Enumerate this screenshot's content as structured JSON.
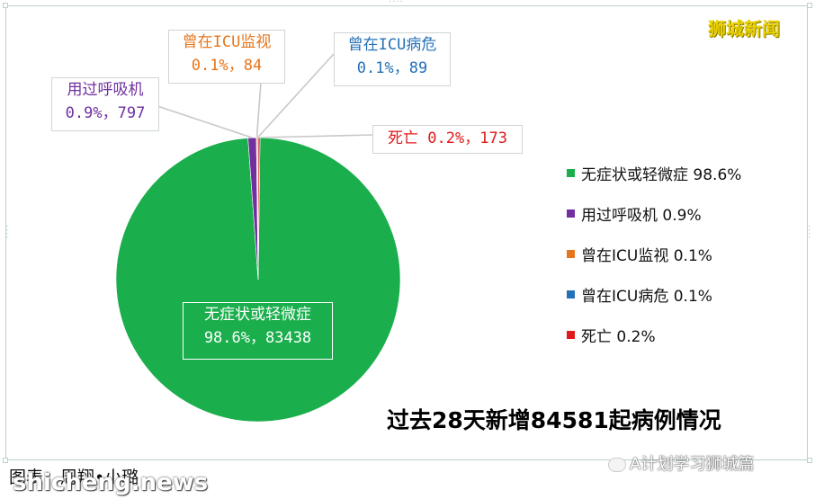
{
  "brand": "狮城新闻",
  "headline": "过去28天新增84581起病例情况",
  "caption": "图表：周翔•小璐",
  "watermark_right": "A计划学习狮城篇",
  "watermark_left": "shicheng.news",
  "callouts": {
    "green": {
      "line1": "无症状或轻微症",
      "line2": "98.6%，83438"
    },
    "purple": {
      "line1": "用过呼吸机",
      "line2": "0.9%，797"
    },
    "orange": {
      "line1": "曾在ICU监视",
      "line2": "0.1%，84"
    },
    "blue": {
      "line1": "曾在ICU病危",
      "line2": "0.1%，89"
    },
    "red": {
      "line1": "死亡 0.2%，173"
    }
  },
  "colors": {
    "green": "#1aae4c",
    "purple": "#7030a0",
    "orange": "#e5761d",
    "blue": "#2471b8",
    "red": "#e01a1a",
    "brand": "#e8d000"
  },
  "chart_data": {
    "type": "pie",
    "title": "过去28天新增84581起病例情况",
    "slices": [
      {
        "name": "无症状或轻微症",
        "value": 83438,
        "percent": 98.6,
        "color": "#1aae4c",
        "legend": "无症状或轻微症 98.6%"
      },
      {
        "name": "用过呼吸机",
        "value": 797,
        "percent": 0.9,
        "color": "#7030a0",
        "legend": "用过呼吸机 0.9%"
      },
      {
        "name": "曾在ICU监视",
        "value": 84,
        "percent": 0.1,
        "color": "#e5761d",
        "legend": "曾在ICU监视 0.1%"
      },
      {
        "name": "曾在ICU病危",
        "value": 89,
        "percent": 0.1,
        "color": "#2471b8",
        "legend": "曾在ICU病危 0.1%"
      },
      {
        "name": "死亡",
        "value": 173,
        "percent": 0.2,
        "color": "#e01a1a",
        "legend": "死亡 0.2%"
      }
    ],
    "legend_position": "right"
  }
}
